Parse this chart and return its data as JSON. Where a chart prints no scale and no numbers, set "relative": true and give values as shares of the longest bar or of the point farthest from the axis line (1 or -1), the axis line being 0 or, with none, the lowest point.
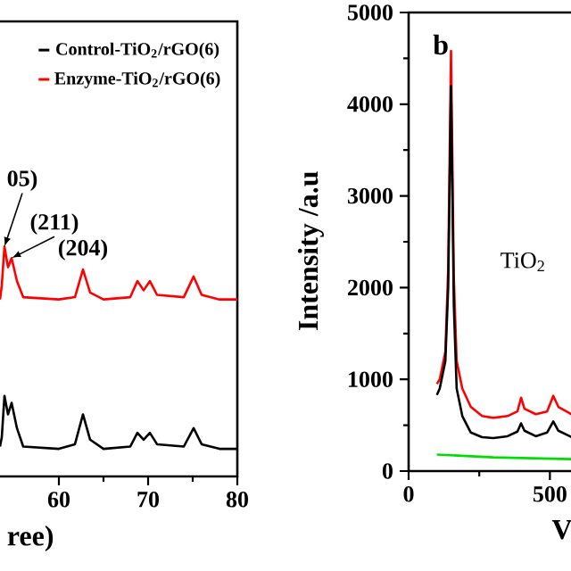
{
  "chart_data": [
    {
      "type": "line",
      "xlabel": "ree)",
      "relative": true,
      "xlim": [
        52.4,
        80
      ],
      "xticks": [
        60,
        70,
        80
      ],
      "tick_labels": "x",
      "legend": "top",
      "x": [
        53.4,
        53.6,
        53.9,
        54.3,
        54.7,
        55.3,
        56,
        60,
        61.8,
        62.7,
        63.5,
        65,
        68,
        68.8,
        69.5,
        70.2,
        71,
        74,
        75.1,
        76,
        78,
        80
      ],
      "series": [
        {
          "name": "Control-TiO$_{2}$/rGO(6)",
          "color": "#000000",
          "values": [
            0.13,
            0.17,
            0.35,
            0.27,
            0.32,
            0.21,
            0.13,
            0.12,
            0.14,
            0.27,
            0.16,
            0.12,
            0.13,
            0.19,
            0.16,
            0.19,
            0.14,
            0.13,
            0.21,
            0.14,
            0.12,
            0.12
          ]
        },
        {
          "name": "Enzyme-TiO$_{2}$/rGO(6)",
          "color": "#ff0000",
          "values": [
            0.77,
            0.83,
            1.0,
            0.91,
            0.95,
            0.85,
            0.78,
            0.77,
            0.78,
            0.9,
            0.8,
            0.77,
            0.78,
            0.85,
            0.81,
            0.85,
            0.79,
            0.78,
            0.87,
            0.79,
            0.77,
            0.77
          ]
        }
      ],
      "annotations": [
        {
          "text": "05)",
          "x": 53.9,
          "y": 1.0
        },
        {
          "text": "(211)",
          "x": 54.7,
          "y": 0.95
        },
        {
          "text": "(204)",
          "x": 62.7,
          "y": 0.9
        }
      ]
    },
    {
      "type": "line",
      "xlabel": "V",
      "ylabel": "Intensity /a.u",
      "xlim": [
        0,
        600
      ],
      "xticks": [
        0,
        500
      ],
      "ylim": [
        0,
        5000
      ],
      "yticks": [
        0,
        1000,
        2000,
        3000,
        4000,
        5000
      ],
      "series": [
        {
          "color": "#ff0000",
          "x": [
            100,
            110,
            130,
            140,
            150,
            160,
            170,
            190,
            220,
            260,
            300,
            350,
            385,
            398,
            410,
            450,
            490,
            512,
            530,
            570,
            576
          ],
          "values": [
            950,
            1000,
            1300,
            2200,
            4580,
            2100,
            1200,
            900,
            700,
            600,
            580,
            600,
            650,
            800,
            680,
            620,
            650,
            820,
            700,
            630,
            620
          ]
        },
        {
          "color": "#000000",
          "x": [
            100,
            110,
            130,
            140,
            150,
            160,
            170,
            190,
            220,
            260,
            300,
            350,
            385,
            398,
            410,
            450,
            490,
            512,
            530,
            570,
            576
          ],
          "values": [
            830,
            900,
            1200,
            2000,
            4200,
            1800,
            900,
            600,
            420,
            370,
            360,
            380,
            430,
            520,
            440,
            380,
            420,
            540,
            440,
            380,
            370
          ]
        },
        {
          "color": "#00dd00",
          "x": [
            100,
            300,
            576
          ],
          "values": [
            180,
            150,
            130
          ]
        }
      ],
      "annotations": [
        "b",
        "TiO$_{2}$"
      ]
    }
  ]
}
